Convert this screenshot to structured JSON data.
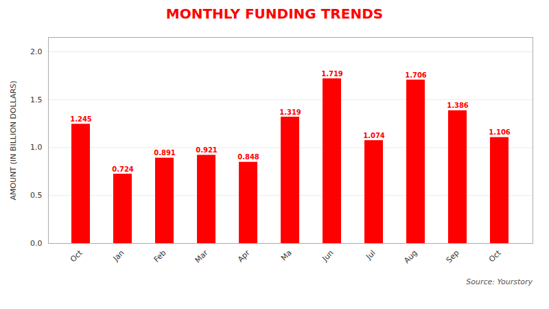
{
  "chart_data": {
    "type": "bar",
    "title": "MONTHLY FUNDING TRENDS",
    "ylabel": "AMOUNT (IN BILLION DOLLARS)",
    "source": "Source: Yourstory",
    "categories": [
      "Oct",
      "Jan",
      "Feb",
      "Mar",
      "Apr",
      "Ma",
      "Jun",
      "Jul",
      "Aug",
      "Sep",
      "Oct"
    ],
    "values": [
      1.245,
      0.724,
      0.891,
      0.921,
      0.848,
      1.319,
      1.719,
      1.074,
      1.706,
      1.386,
      1.106
    ],
    "color": "#FF0000",
    "ylim": [
      0,
      2.15
    ],
    "yticks": [
      {
        "value": 0.0,
        "label": "0.0"
      },
      0.5,
      {
        "value": 1.0,
        "label": "1.0"
      },
      1.5,
      {
        "value": 2.0,
        "label": "2.0"
      }
    ],
    "grid": true,
    "data_labels": true
  }
}
